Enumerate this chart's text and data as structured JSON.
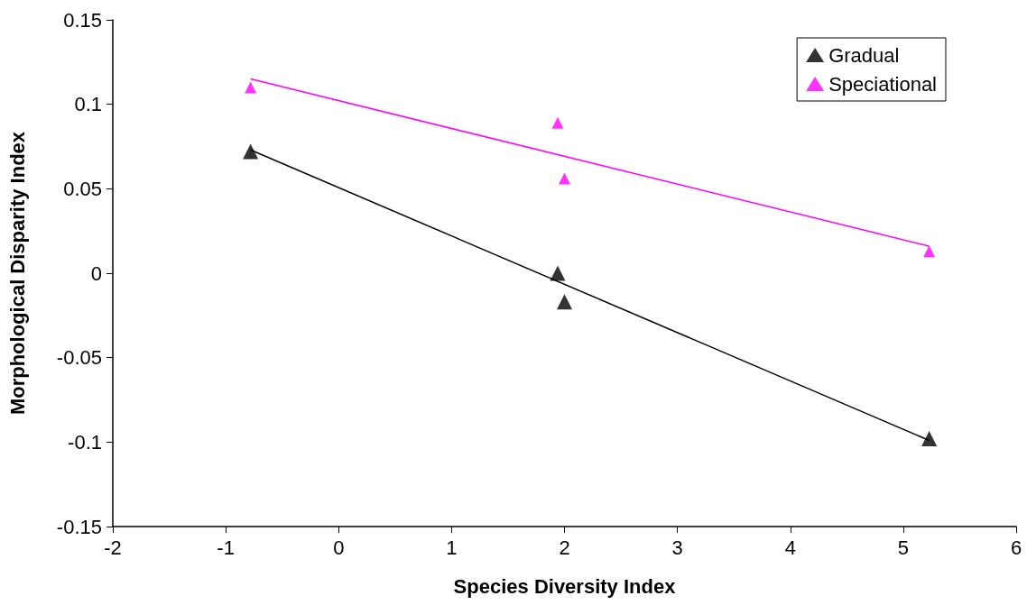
{
  "chart_data": {
    "type": "scatter",
    "xlabel": "Species Diversity Index",
    "ylabel": "Morphological Disparity Index",
    "xlim": [
      -2,
      6
    ],
    "xticks": [
      -2,
      -1,
      0,
      1,
      2,
      3,
      4,
      5,
      6
    ],
    "ylim": [
      -0.15,
      0.15
    ],
    "yticks": [
      -0.15,
      -0.1,
      -0.05,
      0,
      0.05,
      0.1,
      0.15
    ],
    "grid": false,
    "legend": "top right",
    "series": [
      {
        "name": "Gradual",
        "color": "#000000",
        "marker": "triangle",
        "x": [
          -0.78,
          1.94,
          2.0,
          5.23
        ],
        "values": [
          0.072,
          0.0,
          -0.017,
          -0.098
        ]
      },
      {
        "name": "Speciational",
        "color": "#ff00ff",
        "marker": "triangle",
        "x": [
          -0.78,
          1.94,
          2.0,
          5.23
        ],
        "values": [
          0.11,
          0.089,
          0.056,
          0.013
        ]
      },
      {
        "type": "line",
        "color": "#000000",
        "marker": "none",
        "x": [
          -0.78,
          5.23
        ],
        "values": [
          0.073,
          -0.099
        ]
      },
      {
        "type": "line",
        "color": "#ff00ff",
        "marker": "none",
        "x": [
          -0.78,
          5.23
        ],
        "values": [
          0.115,
          0.016
        ]
      }
    ]
  }
}
